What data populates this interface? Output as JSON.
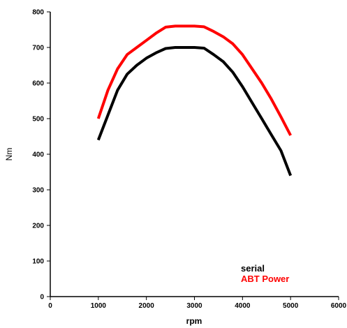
{
  "chart_data": {
    "type": "line",
    "xlabel": "rpm",
    "ylabel": "Nm",
    "xlim": [
      0,
      6000
    ],
    "ylim": [
      0,
      800
    ],
    "x_ticks": [
      0,
      1000,
      2000,
      3000,
      4000,
      5000,
      6000
    ],
    "y_ticks": [
      0,
      100,
      200,
      300,
      400,
      500,
      600,
      700,
      800
    ],
    "grid": false,
    "legend_position": "bottom-right",
    "series": [
      {
        "name": "serial",
        "color": "#000000",
        "x": [
          1000,
          1200,
          1400,
          1600,
          1800,
          2000,
          2200,
          2400,
          2600,
          2800,
          3000,
          3200,
          3400,
          3600,
          3800,
          4000,
          4200,
          4400,
          4600,
          4800,
          5000
        ],
        "y": [
          440,
          510,
          580,
          625,
          650,
          670,
          685,
          697,
          700,
          700,
          700,
          698,
          680,
          660,
          630,
          590,
          545,
          500,
          455,
          410,
          340
        ]
      },
      {
        "name": "ABT Power",
        "color": "#ff0000",
        "x": [
          1000,
          1200,
          1400,
          1600,
          1800,
          2000,
          2200,
          2400,
          2600,
          2800,
          3000,
          3200,
          3400,
          3600,
          3800,
          4000,
          4200,
          4400,
          4600,
          4800,
          5000
        ],
        "y": [
          500,
          580,
          640,
          680,
          700,
          720,
          740,
          757,
          760,
          760,
          760,
          758,
          745,
          730,
          710,
          680,
          640,
          600,
          555,
          505,
          453
        ]
      }
    ]
  }
}
